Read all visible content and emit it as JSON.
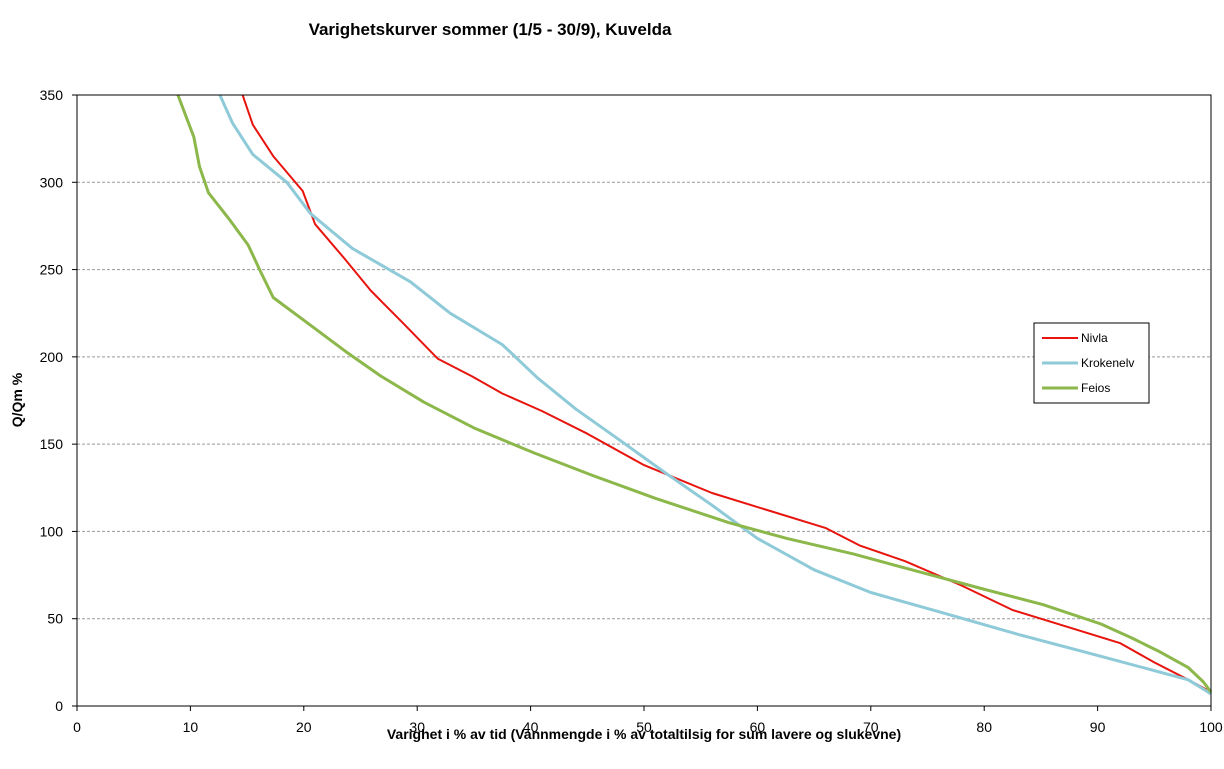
{
  "chart_data": {
    "type": "line",
    "title": "Varighetskurver sommer (1/5 - 30/9), Kuvelda",
    "xlabel": "Varighet i % av tid (Vannmengde i % av totaltilsig for sum lavere og slukevne)",
    "ylabel": "Q/Qm %",
    "xlim": [
      0,
      100
    ],
    "ylim": [
      0,
      350
    ],
    "xticks": [
      0,
      10,
      20,
      30,
      40,
      50,
      60,
      70,
      80,
      90,
      100
    ],
    "yticks": [
      0,
      50,
      100,
      150,
      200,
      250,
      300,
      350
    ],
    "grid": "horizontal-dashed",
    "legend_position": "right",
    "series": [
      {
        "name": "Nivla",
        "color": "#e8140e",
        "x": [
          14.6,
          15.5,
          17.3,
          19.9,
          21.0,
          23.5,
          25.9,
          28.8,
          31.8,
          34.8,
          37.5,
          41,
          45,
          50,
          56,
          61,
          66,
          69,
          73,
          78,
          82.5,
          87,
          92,
          95,
          98,
          100
        ],
        "y": [
          350,
          333,
          315,
          295,
          276,
          257,
          238,
          219,
          199,
          189,
          179,
          169,
          156,
          138,
          122,
          112,
          102,
          92,
          83,
          69,
          55,
          46,
          36,
          25,
          15,
          8
        ]
      },
      {
        "name": "Krokenelv",
        "color": "#8ecad8",
        "x": [
          12.6,
          13.7,
          15.5,
          18.5,
          20.6,
          24.3,
          29.4,
          32.9,
          37.5,
          40.6,
          44,
          47.5,
          52,
          56,
          60,
          65,
          70,
          76,
          83,
          90,
          98,
          100
        ],
        "y": [
          350,
          334,
          316,
          300,
          282,
          262,
          243,
          225,
          207,
          188,
          170,
          154,
          133,
          115,
          96,
          78,
          65,
          54,
          41,
          29,
          15,
          7
        ]
      },
      {
        "name": "Feios",
        "color": "#8cb74a",
        "x": [
          8.9,
          10.3,
          10.8,
          11.6,
          13.4,
          15.1,
          16.1,
          17.3,
          20.2,
          23.7,
          26.8,
          30.6,
          35.1,
          40.3,
          45.5,
          51.0,
          57.5,
          62.6,
          68.5,
          74.2,
          79.9,
          85.2,
          90.3,
          93.0,
          95.5,
          98.0,
          99.3,
          100
        ],
        "y": [
          350,
          326,
          309,
          294,
          279,
          264,
          250,
          234,
          220,
          203,
          189,
          174,
          159,
          145,
          132,
          119,
          105,
          96,
          87,
          77,
          67,
          58,
          47,
          39,
          31,
          22,
          14,
          8
        ]
      }
    ]
  }
}
